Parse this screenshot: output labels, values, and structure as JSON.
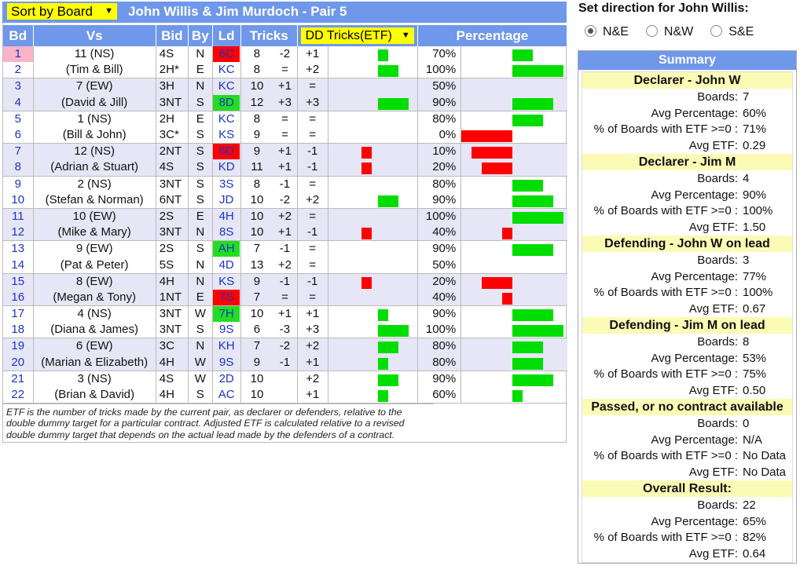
{
  "header": {
    "sort_label": "Sort by Board",
    "title": "John Willis & Jim Murdoch - Pair 5"
  },
  "columns": {
    "bd": "Bd",
    "vs": "Vs",
    "bid": "Bid",
    "by": "By",
    "ld": "Ld",
    "tricks": "Tricks",
    "dd": "DD Tricks(ETF)",
    "pct": "Percentage"
  },
  "colors": {
    "accent": "#6f98ea",
    "select": "#ffff00",
    "positive": "#00dd00",
    "negative": "#ff0000",
    "summary_group": "#fbfbb6"
  },
  "rows": [
    {
      "bd": "1",
      "vs": "11 (NS)",
      "bid": "4S",
      "by": "N",
      "ld": "6C",
      "ld_hl": "red",
      "tricks": "8",
      "diff": "-2",
      "etf": "+1",
      "etf_v": 1,
      "pct": "70%",
      "pct_v": 70,
      "bd_hl": "pink"
    },
    {
      "bd": "2",
      "vs": "(Tim & Bill)",
      "bid": "2H*",
      "by": "E",
      "ld": "KC",
      "ld_hl": "",
      "tricks": "8",
      "diff": "=",
      "etf": "+2",
      "etf_v": 2,
      "pct": "100%",
      "pct_v": 100
    },
    {
      "bd": "3",
      "vs": "7 (EW)",
      "bid": "3H",
      "by": "N",
      "ld": "KC",
      "ld_hl": "",
      "tricks": "10",
      "diff": "+1",
      "etf": "=",
      "etf_v": 0,
      "pct": "50%",
      "pct_v": 50
    },
    {
      "bd": "4",
      "vs": "(David & Jill)",
      "bid": "3NT",
      "by": "S",
      "ld": "8D",
      "ld_hl": "green",
      "tricks": "12",
      "diff": "+3",
      "etf": "+3",
      "etf_v": 3,
      "pct": "90%",
      "pct_v": 90
    },
    {
      "bd": "5",
      "vs": "1 (NS)",
      "bid": "2H",
      "by": "E",
      "ld": "KC",
      "ld_hl": "",
      "tricks": "8",
      "diff": "=",
      "etf": "=",
      "etf_v": 0,
      "pct": "80%",
      "pct_v": 80
    },
    {
      "bd": "6",
      "vs": "(Bill & John)",
      "bid": "3C*",
      "by": "S",
      "ld": "KS",
      "ld_hl": "",
      "tricks": "9",
      "diff": "=",
      "etf": "=",
      "etf_v": 0,
      "pct": "0%",
      "pct_v": 0
    },
    {
      "bd": "7",
      "vs": "12 (NS)",
      "bid": "2NT",
      "by": "S",
      "ld": "6D",
      "ld_hl": "red",
      "tricks": "9",
      "diff": "+1",
      "etf": "-1",
      "etf_v": -1,
      "pct": "10%",
      "pct_v": 10
    },
    {
      "bd": "8",
      "vs": "(Adrian & Stuart)",
      "bid": "4S",
      "by": "S",
      "ld": "KD",
      "ld_hl": "",
      "tricks": "11",
      "diff": "+1",
      "etf": "-1",
      "etf_v": -1,
      "pct": "20%",
      "pct_v": 20
    },
    {
      "bd": "9",
      "vs": "2 (NS)",
      "bid": "3NT",
      "by": "S",
      "ld": "3S",
      "ld_hl": "",
      "tricks": "8",
      "diff": "-1",
      "etf": "=",
      "etf_v": 0,
      "pct": "80%",
      "pct_v": 80
    },
    {
      "bd": "10",
      "vs": "(Stefan & Norman)",
      "bid": "6NT",
      "by": "S",
      "ld": "JD",
      "ld_hl": "",
      "tricks": "10",
      "diff": "-2",
      "etf": "+2",
      "etf_v": 2,
      "pct": "90%",
      "pct_v": 90
    },
    {
      "bd": "11",
      "vs": "10 (EW)",
      "bid": "2S",
      "by": "E",
      "ld": "4H",
      "ld_hl": "",
      "tricks": "10",
      "diff": "+2",
      "etf": "=",
      "etf_v": 0,
      "pct": "100%",
      "pct_v": 100
    },
    {
      "bd": "12",
      "vs": "(Mike & Mary)",
      "bid": "3NT",
      "by": "N",
      "ld": "8S",
      "ld_hl": "",
      "tricks": "10",
      "diff": "+1",
      "etf": "-1",
      "etf_v": -1,
      "pct": "40%",
      "pct_v": 40
    },
    {
      "bd": "13",
      "vs": "9 (EW)",
      "bid": "2S",
      "by": "S",
      "ld": "AH",
      "ld_hl": "green",
      "tricks": "7",
      "diff": "-1",
      "etf": "=",
      "etf_v": 0,
      "pct": "90%",
      "pct_v": 90
    },
    {
      "bd": "14",
      "vs": "(Pat & Peter)",
      "bid": "5S",
      "by": "N",
      "ld": "4D",
      "ld_hl": "",
      "tricks": "13",
      "diff": "+2",
      "etf": "=",
      "etf_v": 0,
      "pct": "50%",
      "pct_v": 50
    },
    {
      "bd": "15",
      "vs": "8 (EW)",
      "bid": "4H",
      "by": "N",
      "ld": "KS",
      "ld_hl": "",
      "tricks": "9",
      "diff": "-1",
      "etf": "-1",
      "etf_v": -1,
      "pct": "20%",
      "pct_v": 20
    },
    {
      "bd": "16",
      "vs": "(Megan & Tony)",
      "bid": "1NT",
      "by": "E",
      "ld": "7S",
      "ld_hl": "red",
      "tricks": "7",
      "diff": "=",
      "etf": "=",
      "etf_v": 0,
      "pct": "40%",
      "pct_v": 40
    },
    {
      "bd": "17",
      "vs": "4 (NS)",
      "bid": "3NT",
      "by": "W",
      "ld": "7H",
      "ld_hl": "green",
      "tricks": "10",
      "diff": "+1",
      "etf": "+1",
      "etf_v": 1,
      "pct": "90%",
      "pct_v": 90
    },
    {
      "bd": "18",
      "vs": "(Diana & James)",
      "bid": "3NT",
      "by": "S",
      "ld": "9S",
      "ld_hl": "",
      "tricks": "6",
      "diff": "-3",
      "etf": "+3",
      "etf_v": 3,
      "pct": "100%",
      "pct_v": 100
    },
    {
      "bd": "19",
      "vs": "6 (EW)",
      "bid": "3C",
      "by": "N",
      "ld": "KH",
      "ld_hl": "",
      "tricks": "7",
      "diff": "-2",
      "etf": "+2",
      "etf_v": 2,
      "pct": "80%",
      "pct_v": 80
    },
    {
      "bd": "20",
      "vs": "(Marian & Elizabeth)",
      "bid": "4H",
      "by": "W",
      "ld": "9S",
      "ld_hl": "",
      "tricks": "9",
      "diff": "-1",
      "etf": "+1",
      "etf_v": 1,
      "pct": "80%",
      "pct_v": 80
    },
    {
      "bd": "21",
      "vs": "3 (NS)",
      "bid": "4S",
      "by": "W",
      "ld": "2D",
      "ld_hl": "",
      "tricks": "10",
      "diff": "",
      "etf": "+2",
      "etf_v": 2,
      "pct": "90%",
      "pct_v": 90
    },
    {
      "bd": "22",
      "vs": "(Brian & David)",
      "bid": "4H",
      "by": "S",
      "ld": "AC",
      "ld_hl": "",
      "tricks": "10",
      "diff": "",
      "etf": "+1",
      "etf_v": 1,
      "pct": "60%",
      "pct_v": 60
    }
  ],
  "footnote": "ETF is the number of tricks made by the current pair, as declarer or defenders, relative to the double dummy target for a particular contract. Adjusted ETF is calculated relative to a revised double dummy target that depends on the actual lead made by the defenders of a contract.",
  "direction": {
    "title": "Set direction for John Willis:",
    "options": [
      "N&E",
      "N&W",
      "S&E"
    ],
    "selected": 0
  },
  "summary": {
    "title": "Summary",
    "groups": [
      {
        "title": "Declarer - John W",
        "rows": [
          [
            "Boards:",
            "7"
          ],
          [
            "Avg Percentage:",
            "60%"
          ],
          [
            "% of Boards with ETF >=0 :",
            "71%"
          ],
          [
            "Avg ETF:",
            "0.29"
          ]
        ]
      },
      {
        "title": "Declarer - Jim M",
        "rows": [
          [
            "Boards:",
            "4"
          ],
          [
            "Avg Percentage:",
            "90%"
          ],
          [
            "% of Boards with ETF >=0 :",
            "100%"
          ],
          [
            "Avg ETF:",
            "1.50"
          ]
        ]
      },
      {
        "title": "Defending - John W on lead",
        "rows": [
          [
            "Boards:",
            "3"
          ],
          [
            "Avg Percentage:",
            "77%"
          ],
          [
            "% of Boards with ETF >=0 :",
            "100%"
          ],
          [
            "Avg ETF:",
            "0.67"
          ]
        ]
      },
      {
        "title": "Defending - Jim M on lead",
        "rows": [
          [
            "Boards:",
            "8"
          ],
          [
            "Avg Percentage:",
            "53%"
          ],
          [
            "% of Boards with ETF >=0 :",
            "75%"
          ],
          [
            "Avg ETF:",
            "0.50"
          ]
        ]
      },
      {
        "title": "Passed, or no contract available",
        "rows": [
          [
            "Boards:",
            "0"
          ],
          [
            "Avg Percentage:",
            "N/A"
          ],
          [
            "% of Boards with ETF >=0 :",
            "No Data"
          ],
          [
            "Avg ETF:",
            "No Data"
          ]
        ]
      },
      {
        "title": "Overall Result:",
        "rows": [
          [
            "Boards:",
            "22"
          ],
          [
            "Avg Percentage:",
            "65%"
          ],
          [
            "% of Boards with ETF >=0 :",
            "82%"
          ],
          [
            "Avg ETF:",
            "0.64"
          ]
        ]
      }
    ]
  }
}
